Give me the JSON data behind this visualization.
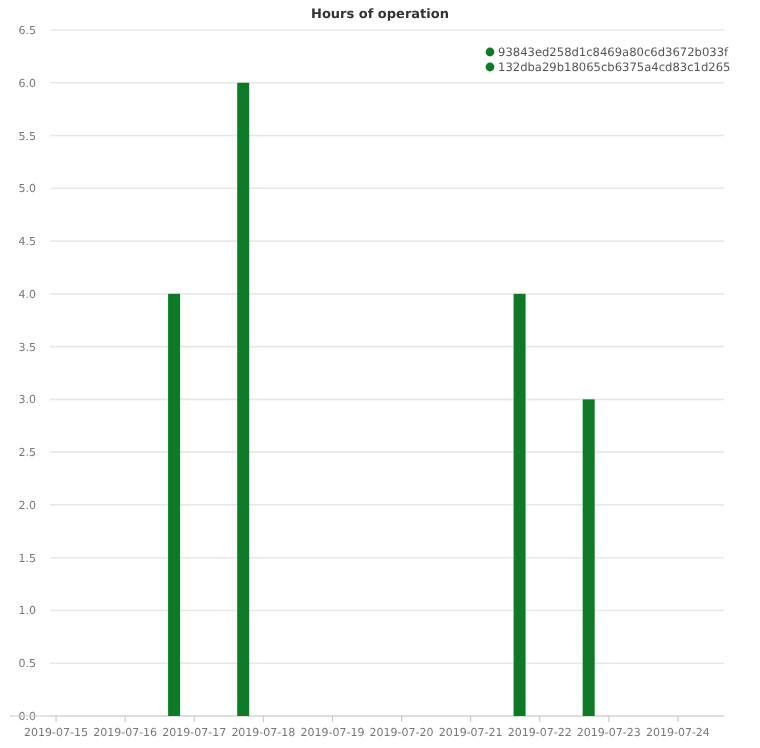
{
  "chart_data": {
    "type": "bar",
    "title": "Hours of operation",
    "x": [
      "2019-07-16T17:00",
      "2019-07-17T17:00",
      "2019-07-21T17:00",
      "2019-07-22T17:00"
    ],
    "series": [
      {
        "name": "93843ed258d1c8469a80c6d3672b033f",
        "color": "#0e7a25",
        "values": [
          4,
          6,
          null,
          null
        ]
      },
      {
        "name": "132dba29b18065cb6375a4cd83c1d265",
        "color": "#0e7a25",
        "values": [
          null,
          null,
          4,
          3
        ]
      }
    ],
    "xlim": [
      "2019-07-14T08:00",
      "2019-07-24T16:00"
    ],
    "xticks": [
      "2019-07-15",
      "2019-07-16",
      "2019-07-17",
      "2019-07-18",
      "2019-07-19",
      "2019-07-20",
      "2019-07-21",
      "2019-07-22",
      "2019-07-23",
      "2019-07-24"
    ],
    "ylim": [
      0,
      6.5
    ],
    "yticks": [
      {
        "value": 0,
        "label": "0.0"
      },
      {
        "value": 0.5,
        "label": "0.5"
      },
      {
        "value": 1,
        "label": "1.0"
      },
      {
        "value": 1.5,
        "label": "1.5"
      },
      {
        "value": 2,
        "label": "2.0"
      },
      {
        "value": 2.5,
        "label": "2.5"
      },
      {
        "value": 3,
        "label": "3.0"
      },
      {
        "value": 3.5,
        "label": "3.5"
      },
      {
        "value": 4,
        "label": "4.0"
      },
      {
        "value": 4.5,
        "label": "4.5"
      },
      {
        "value": 5,
        "label": "5.0"
      },
      {
        "value": 5.5,
        "label": "5.5"
      },
      {
        "value": 6,
        "label": "6.0"
      },
      {
        "value": 6.5,
        "label": "6.5"
      }
    ],
    "grid": "y",
    "legend": "top right"
  }
}
